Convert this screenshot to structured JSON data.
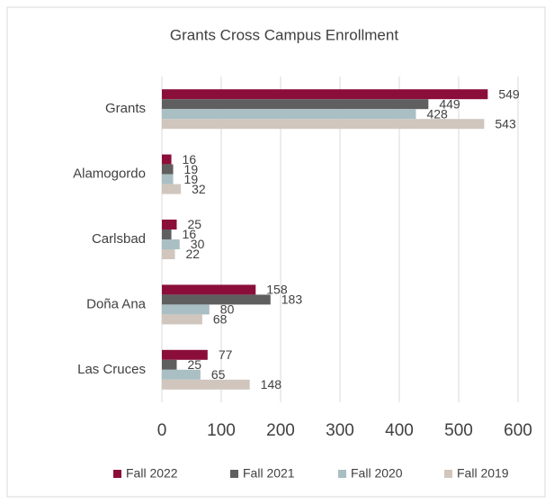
{
  "chart_data": {
    "type": "hbar",
    "title": "Grants Cross Campus Enrollment",
    "categories": [
      "Grants",
      "Alamogordo",
      "Carlsbad",
      "Doña Ana",
      "Las Cruces"
    ],
    "series": [
      {
        "name": "Fall 2022",
        "color": "#8b0e3a",
        "values": [
          549,
          16,
          25,
          158,
          77
        ]
      },
      {
        "name": "Fall 2021",
        "color": "#5f5f5f",
        "values": [
          449,
          19,
          16,
          183,
          25
        ]
      },
      {
        "name": "Fall 2020",
        "color": "#a9bfc4",
        "values": [
          428,
          19,
          30,
          80,
          65
        ]
      },
      {
        "name": "Fall 2019",
        "color": "#d0c6be",
        "values": [
          543,
          32,
          22,
          68,
          148
        ]
      }
    ],
    "xlim": [
      0,
      600
    ],
    "xticks": [
      0,
      100,
      200,
      300,
      400,
      500,
      600
    ],
    "grid": true,
    "legend": "bottom"
  }
}
